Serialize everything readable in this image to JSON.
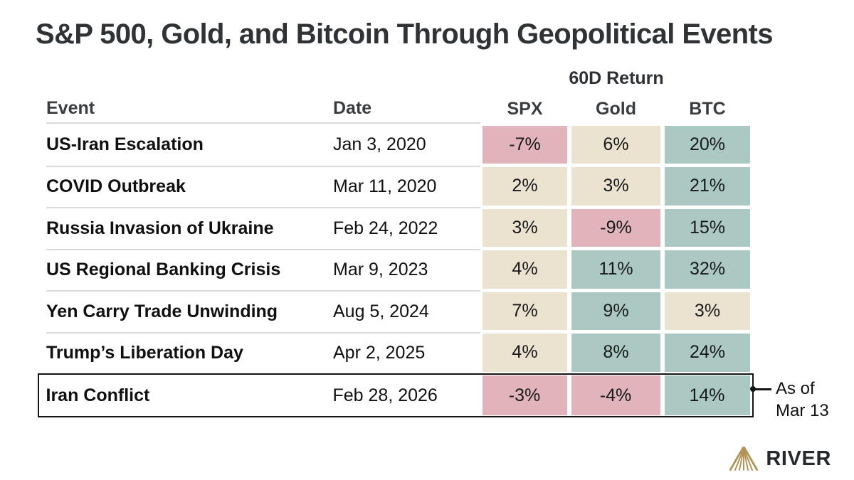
{
  "title": "S&P 500, Gold, and Bitcoin Through Geopolitical Events",
  "table": {
    "group_header": "60D Return",
    "columns": [
      "Event",
      "Date",
      "SPX",
      "Gold",
      "BTC"
    ],
    "rows": [
      {
        "event": "US-Iran Escalation",
        "date": "Jan 3, 2020",
        "values": [
          {
            "text": "-7%",
            "tone": "negative"
          },
          {
            "text": "6%",
            "tone": "neutral"
          },
          {
            "text": "20%",
            "tone": "positive"
          }
        ],
        "highlighted": false
      },
      {
        "event": "COVID Outbreak",
        "date": "Mar 11, 2020",
        "values": [
          {
            "text": "2%",
            "tone": "neutral"
          },
          {
            "text": "3%",
            "tone": "neutral"
          },
          {
            "text": "21%",
            "tone": "positive"
          }
        ],
        "highlighted": false
      },
      {
        "event": "Russia Invasion of Ukraine",
        "date": "Feb 24, 2022",
        "values": [
          {
            "text": "3%",
            "tone": "neutral"
          },
          {
            "text": "-9%",
            "tone": "negative"
          },
          {
            "text": "15%",
            "tone": "positive"
          }
        ],
        "highlighted": false
      },
      {
        "event": "US Regional Banking Crisis",
        "date": "Mar 9, 2023",
        "values": [
          {
            "text": "4%",
            "tone": "neutral"
          },
          {
            "text": "11%",
            "tone": "positive"
          },
          {
            "text": "32%",
            "tone": "positive"
          }
        ],
        "highlighted": false
      },
      {
        "event": "Yen Carry Trade Unwinding",
        "date": "Aug 5, 2024",
        "values": [
          {
            "text": "7%",
            "tone": "neutral"
          },
          {
            "text": "9%",
            "tone": "positive"
          },
          {
            "text": "3%",
            "tone": "neutral"
          }
        ],
        "highlighted": false
      },
      {
        "event": "Trump’s Liberation Day",
        "date": "Apr 2, 2025",
        "values": [
          {
            "text": "4%",
            "tone": "neutral"
          },
          {
            "text": "8%",
            "tone": "positive"
          },
          {
            "text": "24%",
            "tone": "positive"
          }
        ],
        "highlighted": false
      },
      {
        "event": "Iran Conflict",
        "date": "Feb 28, 2026",
        "values": [
          {
            "text": "-3%",
            "tone": "negative"
          },
          {
            "text": "-4%",
            "tone": "negative"
          },
          {
            "text": "14%",
            "tone": "positive"
          }
        ],
        "highlighted": true
      }
    ]
  },
  "annotation": {
    "text_line1": "As of",
    "text_line2": "Mar 13"
  },
  "logo": {
    "brand": "RIVER",
    "icon": "river-mountain-icon"
  },
  "colors": {
    "negative": "#e0b4ba",
    "neutral": "#ece2d0",
    "positive": "#abc9c2",
    "accent_gold": "#b29357"
  },
  "chart_data": {
    "type": "table",
    "title": "S&P 500, Gold, and Bitcoin Through Geopolitical Events",
    "group_header": "60D Return",
    "columns": [
      "Event",
      "Date",
      "SPX",
      "Gold",
      "BTC"
    ],
    "units": "percent",
    "rows": [
      [
        "US-Iran Escalation",
        "Jan 3, 2020",
        -7,
        6,
        20
      ],
      [
        "COVID Outbreak",
        "Mar 11, 2020",
        2,
        3,
        21
      ],
      [
        "Russia Invasion of Ukraine",
        "Feb 24, 2022",
        3,
        -9,
        15
      ],
      [
        "US Regional Banking Crisis",
        "Mar 9, 2023",
        4,
        11,
        32
      ],
      [
        "Yen Carry Trade Unwinding",
        "Aug 5, 2024",
        7,
        9,
        3
      ],
      [
        "Trump’s Liberation Day",
        "Apr 2, 2025",
        4,
        8,
        24
      ],
      [
        "Iran Conflict",
        "Feb 28, 2026",
        -3,
        -4,
        14
      ]
    ],
    "annotation": "As of Mar 13",
    "highlighted_row": "Iran Conflict",
    "color_legend": {
      "negative_return": "#e0b4ba",
      "small_positive_return": "#ece2d0",
      "large_positive_return": "#abc9c2"
    }
  }
}
